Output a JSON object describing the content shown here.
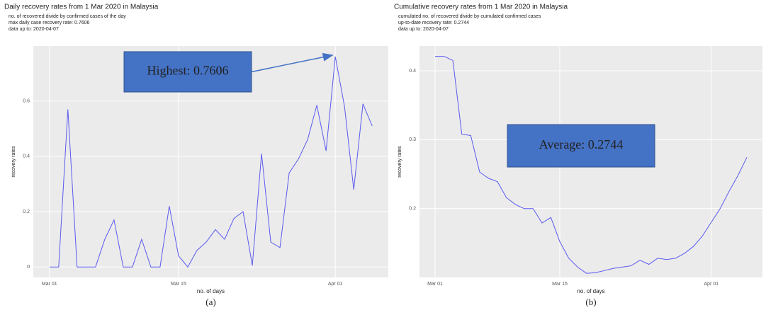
{
  "chart_data": [
    {
      "type": "line",
      "title": "Daily recovery rates from 1 Mar 2020 in Malaysia",
      "subtitle": [
        "no. of recovered divide by confirmed cases of the day",
        "max daily case recovery rate: 0.7606",
        "data up to: 2020-04-07"
      ],
      "xlabel": "no. of days",
      "ylabel": "recovery rates",
      "caption": "(a)",
      "annotation": "Highest: 0.7606",
      "categories": [
        "Mar 01",
        null,
        null,
        null,
        null,
        null,
        null,
        null,
        null,
        null,
        null,
        null,
        null,
        null,
        "Mar 15",
        null,
        null,
        null,
        null,
        null,
        null,
        null,
        null,
        null,
        null,
        null,
        null,
        null,
        null,
        null,
        null,
        "Apr 01",
        null,
        null,
        null,
        null
      ],
      "color": "#5a5af0",
      "values": [
        0,
        0,
        0.57,
        0,
        0,
        0,
        0.1,
        0.17,
        0,
        0,
        0.1,
        0,
        0,
        0.22,
        0.04,
        0,
        0.06,
        0.09,
        0.135,
        0.1,
        0.175,
        0.2,
        0.005,
        0.41,
        0.09,
        0.07,
        0.34,
        0.39,
        0.46,
        0.585,
        0.42,
        0.7606,
        0.58,
        0.28,
        0.59,
        0.51
      ],
      "ylim": [
        -0.038,
        0.799
      ],
      "yticks": [
        0.0,
        0.2,
        0.4,
        0.6
      ],
      "grid": true
    },
    {
      "type": "line",
      "title": "Cumulative recovery rates from 1 Mar 2020 in Malaysia",
      "subtitle": [
        "cumulated no. of recovered divide by cumulated confirmed cases",
        "up-to-date recovery rate: 0.2744",
        "data up to: 2020-04-07"
      ],
      "xlabel": "no. of days",
      "ylabel": "recovery rates",
      "caption": "(b)",
      "annotation": "Average: 0.2744",
      "categories": [
        "Mar 01",
        null,
        null,
        null,
        null,
        null,
        null,
        null,
        null,
        null,
        null,
        null,
        null,
        null,
        "Mar 15",
        null,
        null,
        null,
        null,
        null,
        null,
        null,
        null,
        null,
        null,
        null,
        null,
        null,
        null,
        null,
        null,
        "Apr 01",
        null,
        null,
        null,
        null
      ],
      "color": "#5a5af0",
      "values": [
        0.421,
        0.421,
        0.415,
        0.308,
        0.306,
        0.253,
        0.244,
        0.239,
        0.216,
        0.206,
        0.2,
        0.2,
        0.179,
        0.187,
        0.152,
        0.128,
        0.115,
        0.106,
        0.107,
        0.11,
        0.113,
        0.115,
        0.117,
        0.125,
        0.119,
        0.128,
        0.126,
        0.128,
        0.135,
        0.145,
        0.16,
        0.18,
        0.2,
        0.225,
        0.248,
        0.2744
      ],
      "ylim": [
        0.1,
        0.436
      ],
      "yticks": [
        0.2,
        0.3,
        0.4
      ],
      "grid": true
    }
  ]
}
